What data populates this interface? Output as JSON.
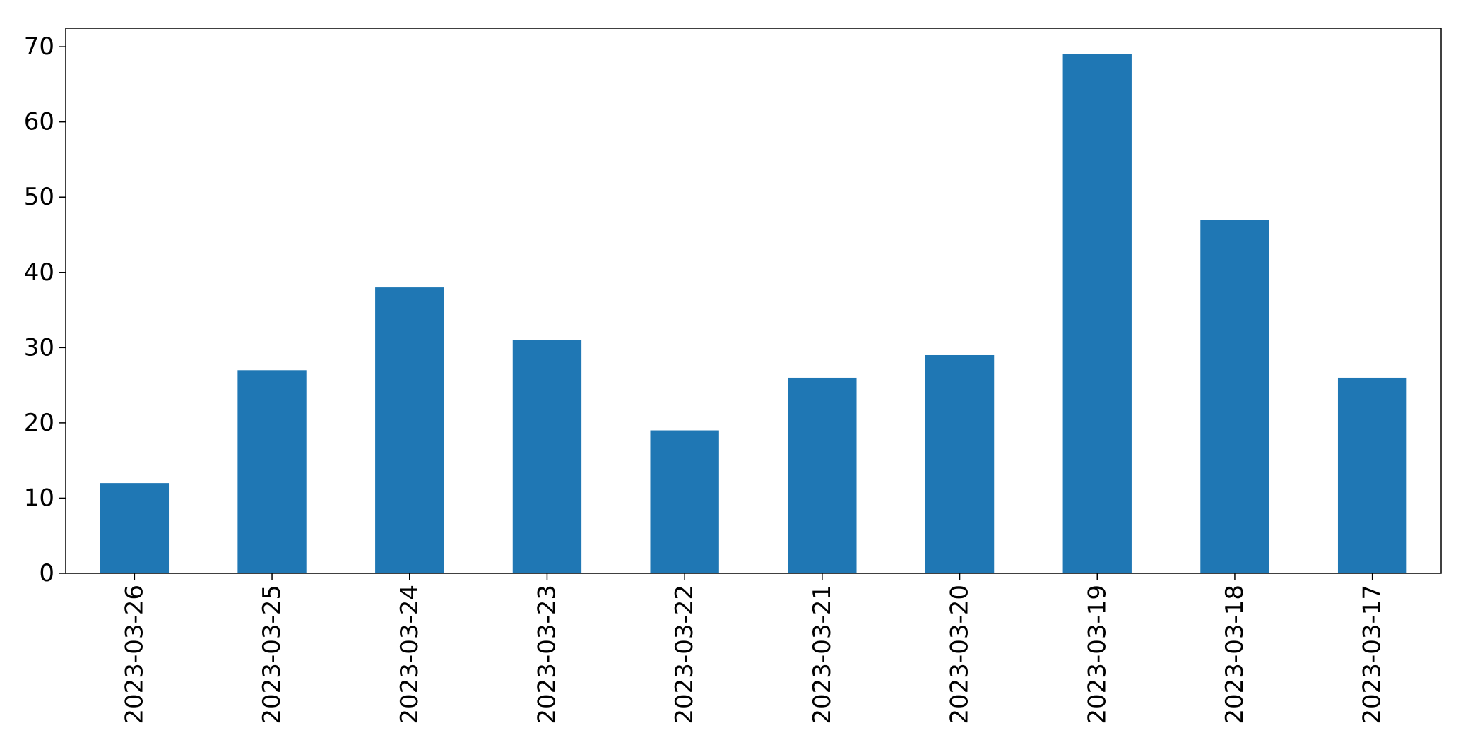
{
  "chart_data": {
    "type": "bar",
    "categories": [
      "2023-03-26",
      "2023-03-25",
      "2023-03-24",
      "2023-03-23",
      "2023-03-22",
      "2023-03-21",
      "2023-03-20",
      "2023-03-19",
      "2023-03-18",
      "2023-03-17"
    ],
    "values": [
      12,
      27,
      38,
      31,
      19,
      26,
      29,
      69,
      47,
      26
    ],
    "title": "",
    "xlabel": "",
    "ylabel": "",
    "ylim": [
      0,
      72.45
    ],
    "yticks": [
      0,
      10,
      20,
      30,
      40,
      50,
      60,
      70
    ],
    "grid": false,
    "legend": "none",
    "bar_color": "#1f77b4",
    "axes_color": "#000000",
    "x_tick_rotation": "vertical"
  }
}
